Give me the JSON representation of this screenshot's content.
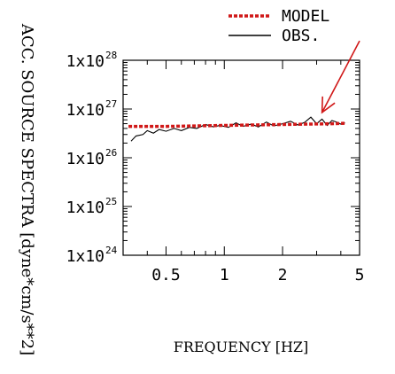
{
  "chart_data": {
    "type": "line",
    "title": "",
    "xlabel": "FREQUENCY [HZ]",
    "ylabel": "ACC. SOURCE SPECTRA [dyne*cm/s**2]",
    "xscale": "log",
    "yscale": "log",
    "xlim": [
      0.3,
      5.0
    ],
    "ylim": [
      1e+24,
      1e+28
    ],
    "xticks": [
      {
        "value": 0.5,
        "label": "0.5"
      },
      {
        "value": 1,
        "label": "1"
      },
      {
        "value": 2,
        "label": "2"
      },
      {
        "value": 5,
        "label": "5"
      }
    ],
    "yticks": [
      {
        "value": 1e+24,
        "base": "1x10",
        "exp": "24"
      },
      {
        "value": 1e+25,
        "base": "1x10",
        "exp": "25"
      },
      {
        "value": 1e+26,
        "base": "1x10",
        "exp": "26"
      },
      {
        "value": 1e+27,
        "base": "1x10",
        "exp": "27"
      },
      {
        "value": 1e+28,
        "base": "1x10",
        "exp": "28"
      }
    ],
    "legend_position": "top-right",
    "series": [
      {
        "name": "MODEL",
        "style": "dashed",
        "color": "#d01818",
        "x": [
          0.32,
          0.5,
          0.7,
          1.0,
          1.4,
          2.0,
          2.8,
          3.6,
          4.2
        ],
        "y": [
          4.4e+26,
          4.4e+26,
          4.5e+26,
          4.6e+26,
          4.7e+26,
          4.8e+26,
          4.9e+26,
          5e+26,
          5.1e+26
        ]
      },
      {
        "name": "OBS.",
        "style": "solid",
        "color": "#000000",
        "x": [
          0.33,
          0.35,
          0.38,
          0.4,
          0.43,
          0.46,
          0.5,
          0.55,
          0.6,
          0.66,
          0.72,
          0.8,
          0.88,
          0.95,
          1.05,
          1.15,
          1.25,
          1.38,
          1.5,
          1.65,
          1.8,
          2.0,
          2.2,
          2.4,
          2.6,
          2.8,
          3.0,
          3.2,
          3.4,
          3.6,
          3.8,
          4.0,
          4.2
        ],
        "y": [
          2.2e+26,
          2.8e+26,
          3e+26,
          3.6e+26,
          3.2e+26,
          3.8e+26,
          3.5e+26,
          4e+26,
          3.6e+26,
          4.2e+26,
          4e+26,
          4.8e+26,
          4.3e+26,
          4.6e+26,
          4.2e+26,
          5.2e+26,
          4.4e+26,
          4.9e+26,
          4.3e+26,
          5.4e+26,
          4.5e+26,
          5e+26,
          5.6e+26,
          4.7e+26,
          5.3e+26,
          6.8e+26,
          5e+26,
          6.2e+26,
          4.6e+26,
          5.8e+26,
          5.4e+26,
          4.9e+26,
          5.2e+26
        ]
      }
    ],
    "annotations": [
      {
        "type": "arrow",
        "color": "#d01818",
        "from": {
          "x": 5.0,
          "y": 2.5e+28
        },
        "to": {
          "x": 3.2,
          "y": 8.5e+26
        }
      }
    ]
  }
}
